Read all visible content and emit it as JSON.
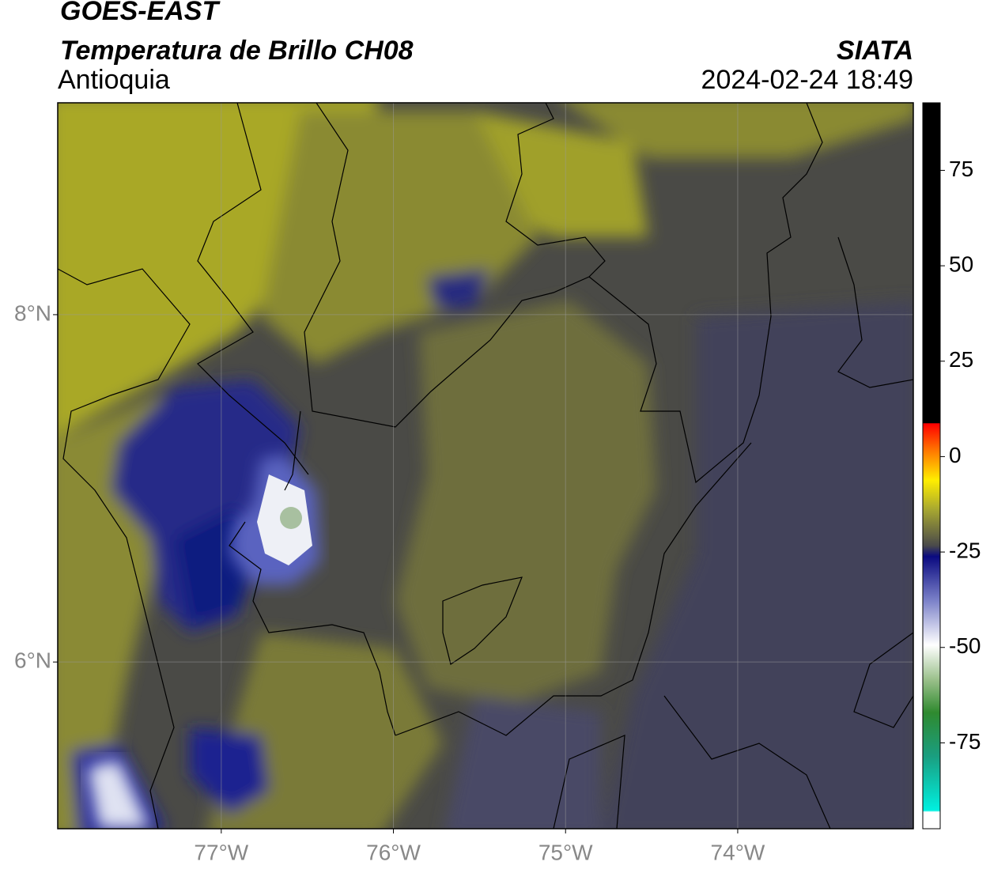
{
  "title": "GOES-EAST",
  "subtitle": "Temperatura de Brillo CH08",
  "region": "Antioquia",
  "source": "SIATA",
  "datetime": "2024-02-24 18:49",
  "map": {
    "xlim": [
      -77.95,
      -72.98
    ],
    "ylim": [
      5.04,
      9.22
    ],
    "xticks": [
      {
        "value": -77,
        "label": "77°W"
      },
      {
        "value": -76,
        "label": "76°W"
      },
      {
        "value": -75,
        "label": "75°W"
      },
      {
        "value": -74,
        "label": "74°W"
      }
    ],
    "yticks": [
      {
        "value": 6,
        "label": "6°N"
      },
      {
        "value": 8,
        "label": "8°N"
      }
    ],
    "grid": true
  },
  "colorbar": {
    "clim": [
      -97.5,
      92.7
    ],
    "ticks": [
      -75,
      -50,
      -25,
      0,
      25,
      50,
      75
    ]
  }
}
